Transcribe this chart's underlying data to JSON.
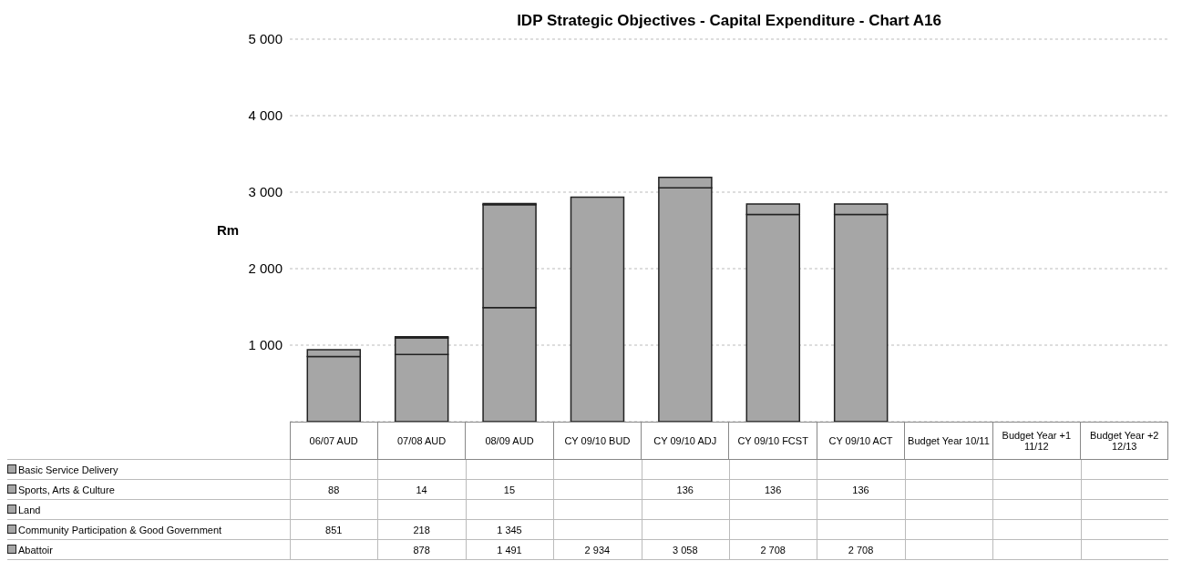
{
  "chart_data": {
    "type": "bar",
    "title": "IDP Strategic Objectives - Capital Expenditure - Chart A16",
    "ylabel": "Rm",
    "categories": [
      "06/07 AUD",
      "07/08 AUD",
      "08/09 AUD",
      "CY 09/10 BUD",
      "CY  09/10 ADJ",
      "CY 09/10 FCST",
      "CY 09/10 ACT",
      "Budget Year 10/11",
      "Budget Year +1 11/12",
      "Budget Year +2 12/13"
    ],
    "stacked": true,
    "ylim": [
      0,
      5000
    ],
    "yticks": [
      {
        "value": 0,
        "label": null
      },
      {
        "value": 1000,
        "label": "1 000"
      },
      {
        "value": 2000,
        "label": "2 000"
      },
      {
        "value": 3000,
        "label": "3 000"
      },
      {
        "value": 4000,
        "label": "4 000"
      },
      {
        "value": 5000,
        "label": "5 000"
      }
    ],
    "grid": "y",
    "legend": "bottom",
    "series": [
      {
        "name": "Abattoir",
        "color": "#a6a6a6",
        "values": [
          null,
          878,
          1491,
          2934,
          3058,
          2708,
          2708,
          null,
          null,
          null
        ],
        "value_labels": [
          null,
          "878",
          "1 491",
          "2 934",
          "3 058",
          "2 708",
          "2 708",
          null,
          null,
          null
        ]
      },
      {
        "name": "Community Participation & Good Government",
        "color": "#a6a6a6",
        "values": [
          851,
          218,
          1345,
          null,
          null,
          null,
          null,
          null,
          null,
          null
        ],
        "value_labels": [
          "851",
          "218",
          "1 345",
          null,
          null,
          null,
          null,
          null,
          null,
          null
        ]
      },
      {
        "name": "Land",
        "color": "#a6a6a6",
        "values": [
          null,
          null,
          null,
          null,
          null,
          null,
          null,
          null,
          null,
          null
        ],
        "value_labels": [
          null,
          null,
          null,
          null,
          null,
          null,
          null,
          null,
          null,
          null
        ]
      },
      {
        "name": "Sports, Arts & Culture",
        "color": "#a6a6a6",
        "values": [
          88,
          14,
          15,
          null,
          136,
          136,
          136,
          null,
          null,
          null
        ],
        "value_labels": [
          "88",
          "14",
          "15",
          null,
          "136",
          "136",
          "136",
          null,
          null,
          null
        ]
      },
      {
        "name": "Basic Service Delivery",
        "color": "#a6a6a6",
        "values": [
          null,
          null,
          null,
          null,
          null,
          null,
          null,
          null,
          null,
          null
        ],
        "value_labels": [
          null,
          null,
          null,
          null,
          null,
          null,
          null,
          null,
          null,
          null
        ]
      }
    ]
  }
}
